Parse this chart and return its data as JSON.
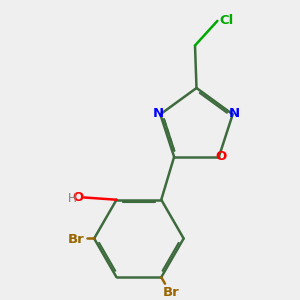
{
  "background_color": "#efefef",
  "bond_color": "#3d6b3d",
  "bond_lw": 1.8,
  "atom_colors": {
    "Cl": "#00aa00",
    "N": "#0000ff",
    "O_ring": "#ff0000",
    "O_OH": "#ff0000",
    "H": "#808080",
    "Br": "#996600",
    "C": "#3d6b3d"
  },
  "font_size": 9.5
}
